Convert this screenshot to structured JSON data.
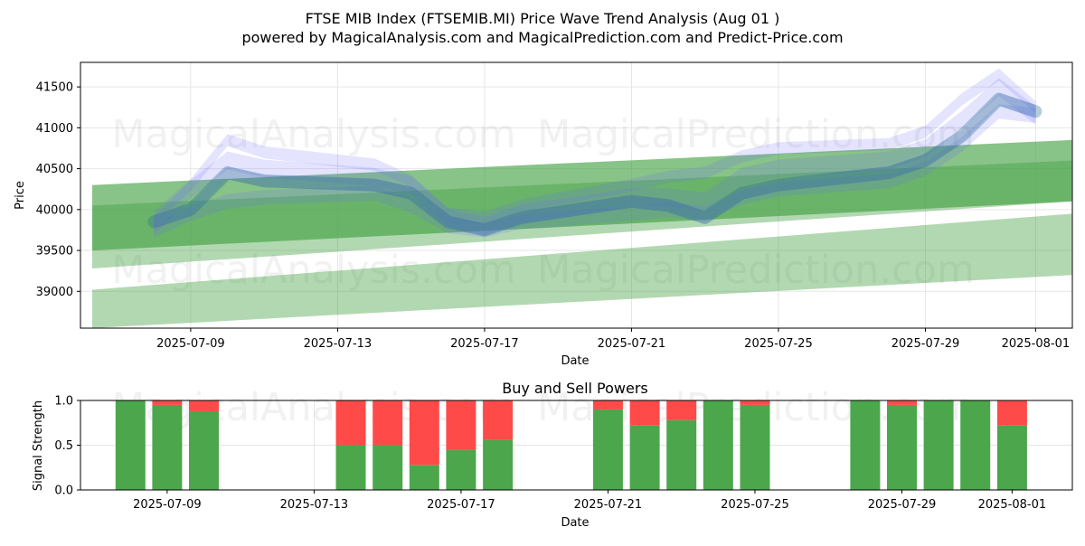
{
  "title": "FTSE MIB Index (FTSEMIB.MI) Price Wave Trend Analysis (Aug 01 )",
  "subtitle": "powered by MagicalAnalysis.com and MagicalPrediction.com and Predict-Price.com",
  "watermarks": [
    "MagicalAnalysis.com",
    "MagicalPrediction.com"
  ],
  "colors": {
    "blue_band": "#6b6bff",
    "green_band": "#3f9e3f",
    "buy": "#4ca64c",
    "sell": "#ff4a4a",
    "grid": "#e6e6e6"
  },
  "chart_data": [
    {
      "type": "area",
      "ylabel": "Price",
      "xlabel": "Date",
      "grid": true,
      "x_ticks": [
        "2025-07-09",
        "2025-07-13",
        "2025-07-17",
        "2025-07-21",
        "2025-07-25",
        "2025-07-29",
        "2025-08-01"
      ],
      "y_ticks": [
        39000,
        39500,
        40000,
        40500,
        41000,
        41500
      ],
      "xlim": [
        "2025-07-06",
        "2025-08-02"
      ],
      "ylim": [
        38550,
        41800
      ],
      "dates": [
        "2025-07-08",
        "2025-07-09",
        "2025-07-10",
        "2025-07-11",
        "2025-07-14",
        "2025-07-15",
        "2025-07-16",
        "2025-07-17",
        "2025-07-18",
        "2025-07-21",
        "2025-07-22",
        "2025-07-23",
        "2025-07-24",
        "2025-07-25",
        "2025-07-28",
        "2025-07-29",
        "2025-07-30",
        "2025-07-31",
        "2025-08-01"
      ],
      "price_bands": [
        {
          "name": "blue",
          "center": [
            39850,
            40000,
            40450,
            40350,
            40300,
            40200,
            39850,
            39750,
            39900,
            40100,
            40050,
            39900,
            40200,
            40300,
            40450,
            40600,
            40900,
            41350,
            41200
          ],
          "width": 160
        },
        {
          "name": "blue",
          "center": [
            39800,
            40250,
            40600,
            40500,
            40400,
            40300,
            39900,
            39800,
            39950,
            40150,
            40150,
            40100,
            40400,
            40500,
            40600,
            40750,
            41100,
            41500,
            41150
          ],
          "width": 220
        },
        {
          "name": "blue",
          "center": [
            39900,
            40300,
            40850,
            40700,
            40550,
            40350,
            39950,
            39900,
            40050,
            40300,
            40400,
            40450,
            40650,
            40750,
            40800,
            40950,
            41350,
            41650,
            41250
          ],
          "width": 150
        },
        {
          "name": "blue",
          "center": [
            39750,
            39950,
            40100,
            40150,
            40200,
            40050,
            39800,
            39750,
            39850,
            39950,
            40000,
            39950,
            40150,
            40250,
            40350,
            40500,
            40800,
            41200,
            41150
          ],
          "width": 180
        }
      ],
      "trend_channels": [
        {
          "name": "green",
          "start": {
            "date": "2025-07-06",
            "lower": 39500,
            "upper": 40300
          },
          "end": {
            "date": "2025-08-01",
            "lower": 40100,
            "upper": 40850
          }
        },
        {
          "name": "green",
          "start": {
            "date": "2025-07-06",
            "lower": 39280,
            "upper": 40050
          },
          "end": {
            "date": "2025-08-01",
            "lower": 40100,
            "upper": 40600
          }
        },
        {
          "name": "green",
          "start": {
            "date": "2025-07-06",
            "lower": 38550,
            "upper": 39020
          },
          "end": {
            "date": "2025-08-01",
            "lower": 39200,
            "upper": 39950
          }
        }
      ]
    },
    {
      "type": "bar",
      "title": "Buy and Sell Powers",
      "ylabel": "Signal Strength",
      "xlabel": "Date",
      "ylim": [
        0,
        1.0
      ],
      "y_ticks": [
        0.0,
        0.5,
        1.0
      ],
      "x_ticks": [
        "2025-07-09",
        "2025-07-13",
        "2025-07-17",
        "2025-07-21",
        "2025-07-25",
        "2025-07-29",
        "2025-08-01"
      ],
      "categories": [
        "2025-07-08",
        "2025-07-09",
        "2025-07-10",
        "2025-07-14",
        "2025-07-15",
        "2025-07-16",
        "2025-07-17",
        "2025-07-18",
        "2025-07-21",
        "2025-07-22",
        "2025-07-23",
        "2025-07-24",
        "2025-07-25",
        "2025-07-28",
        "2025-07-29",
        "2025-07-30",
        "2025-07-31",
        "2025-08-01"
      ],
      "series": [
        {
          "name": "Buy",
          "values": [
            1.0,
            0.95,
            0.88,
            0.5,
            0.5,
            0.28,
            0.45,
            0.56,
            0.9,
            0.72,
            0.78,
            1.0,
            0.95,
            1.0,
            0.95,
            1.0,
            1.0,
            0.72
          ]
        },
        {
          "name": "Sell",
          "values": [
            0.0,
            0.05,
            0.12,
            0.5,
            0.5,
            0.72,
            0.55,
            0.44,
            0.1,
            0.28,
            0.22,
            0.0,
            0.05,
            0.0,
            0.05,
            0.0,
            0.0,
            0.28
          ]
        }
      ]
    }
  ]
}
